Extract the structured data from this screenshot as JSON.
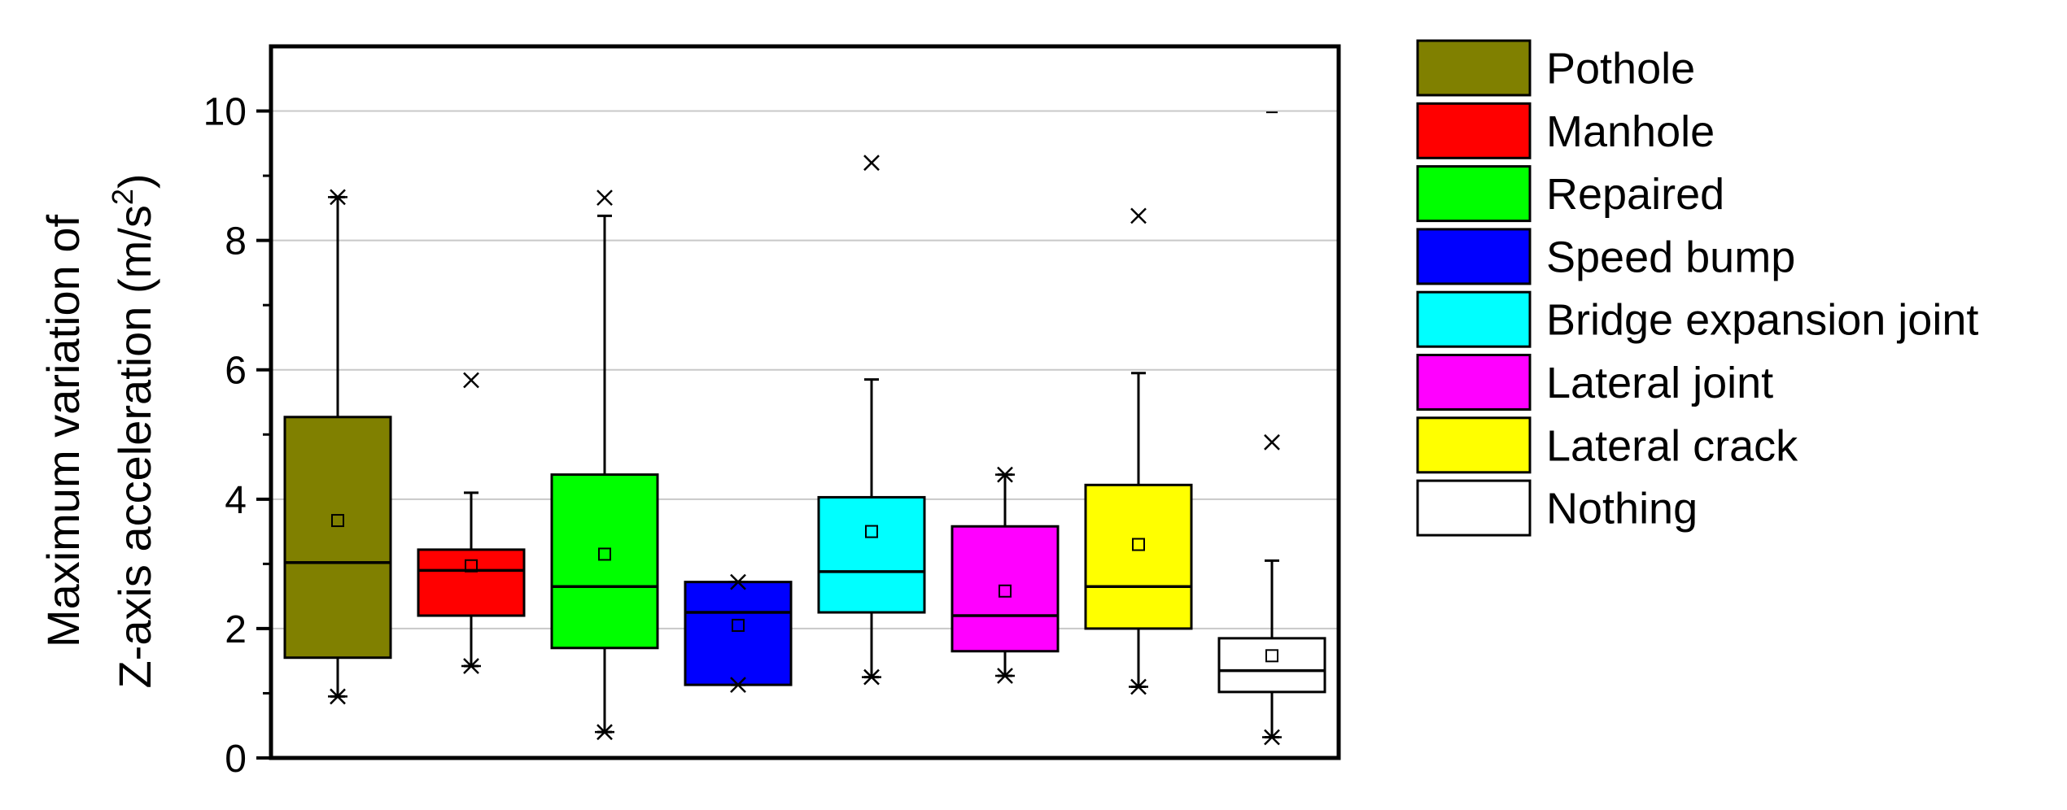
{
  "chart_data": {
    "type": "box",
    "ylabel_line1": "Maximum variation of",
    "ylabel_line2_prefix": "Z-axis acceleration (m/s",
    "ylabel_line2_sup": "2",
    "ylabel_line2_suffix": ")",
    "ylim": [
      0,
      11
    ],
    "yticks": [
      "0",
      "2",
      "4",
      "6",
      "8",
      "10"
    ],
    "grid": true,
    "legend_position": "right",
    "series": [
      {
        "name": "Pothole",
        "color": "#808000",
        "q1": 1.55,
        "median": 3.02,
        "q3": 5.27,
        "mean": 3.67,
        "whisker_low": 0.95,
        "whisker_high": 8.67,
        "low_marker": "star",
        "high_marker": "star",
        "outliers": []
      },
      {
        "name": "Manhole",
        "color": "#ff0000",
        "q1": 2.2,
        "median": 2.9,
        "q3": 3.22,
        "mean": 2.97,
        "whisker_low": 1.42,
        "whisker_high": 4.1,
        "low_marker": "star",
        "high_marker": "none",
        "outliers": [
          5.84
        ]
      },
      {
        "name": "Repaired",
        "color": "#00ff00",
        "q1": 1.7,
        "median": 2.65,
        "q3": 4.38,
        "mean": 3.15,
        "whisker_low": 0.4,
        "whisker_high": 8.38,
        "low_marker": "star",
        "high_marker": "none",
        "outliers": [
          8.66
        ]
      },
      {
        "name": "Speed bump",
        "color": "#0000ff",
        "q1": 1.13,
        "median": 2.25,
        "q3": 2.72,
        "mean": 2.05,
        "whisker_low": 1.13,
        "whisker_high": 2.72,
        "low_marker": "star",
        "high_marker": "star",
        "outliers": []
      },
      {
        "name": "Bridge expansion joint",
        "color": "#00ffff",
        "q1": 2.25,
        "median": 2.88,
        "q3": 4.03,
        "mean": 3.5,
        "whisker_low": 1.25,
        "whisker_high": 5.85,
        "low_marker": "star",
        "high_marker": "none",
        "outliers": [
          9.2
        ]
      },
      {
        "name": "Lateral joint",
        "color": "#ff00ff",
        "q1": 1.65,
        "median": 2.2,
        "q3": 3.58,
        "mean": 2.58,
        "whisker_low": 1.27,
        "whisker_high": 4.38,
        "low_marker": "star",
        "high_marker": "star",
        "outliers": []
      },
      {
        "name": "Lateral crack",
        "color": "#ffff00",
        "q1": 2.0,
        "median": 2.65,
        "q3": 4.22,
        "mean": 3.3,
        "whisker_low": 1.1,
        "whisker_high": 5.95,
        "low_marker": "star",
        "high_marker": "none",
        "outliers": [
          8.38
        ]
      },
      {
        "name": "Nothing",
        "color": "#ffffff",
        "q1": 1.02,
        "median": 1.35,
        "q3": 1.85,
        "mean": 1.58,
        "whisker_low": 0.32,
        "whisker_high": 3.05,
        "low_marker": "star",
        "high_marker": "none",
        "outliers": [
          4.88,
          9.98
        ]
      }
    ]
  }
}
